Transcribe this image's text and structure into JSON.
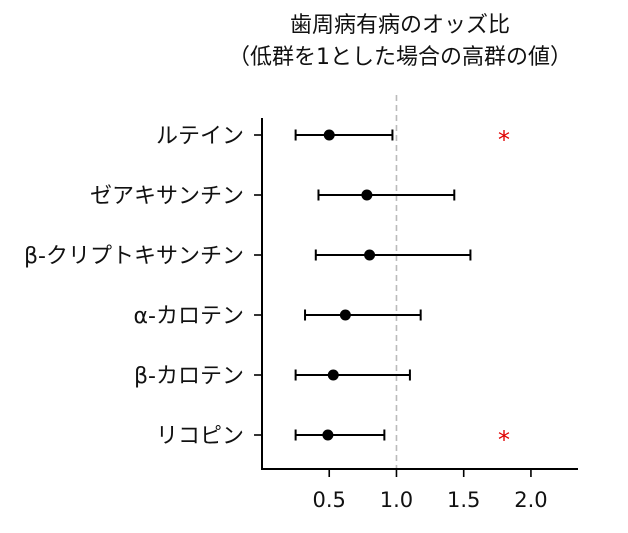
{
  "chart_data": {
    "type": "forest",
    "title": "歯周病有病のオッズ比",
    "subtitle": "（低群を1とした場合の高群の値）",
    "xlabel": "",
    "ylabel": "",
    "xlim": [
      0.0,
      2.35
    ],
    "xticks": [
      "0.5",
      "1.0",
      "1.5",
      "2.0"
    ],
    "xtick_values": [
      0.5,
      1.0,
      1.5,
      2.0
    ],
    "reference_line": 1.0,
    "grid": false,
    "significance_marker": "*",
    "colors": {
      "point": "#000000",
      "reference": "#bbbbbb",
      "significance": "#e00000",
      "axis": "#000000"
    },
    "rows": [
      {
        "label": "ルテイン",
        "or": 0.5,
        "lower": 0.25,
        "upper": 0.97,
        "significant": true
      },
      {
        "label": "ゼアキサンチン",
        "or": 0.78,
        "lower": 0.42,
        "upper": 1.43,
        "significant": false
      },
      {
        "label": "β-クリプトキサンチン",
        "or": 0.8,
        "lower": 0.4,
        "upper": 1.55,
        "significant": false
      },
      {
        "label": "α-カロテン",
        "or": 0.62,
        "lower": 0.32,
        "upper": 1.18,
        "significant": false
      },
      {
        "label": "β-カロテン",
        "or": 0.53,
        "lower": 0.25,
        "upper": 1.1,
        "significant": false
      },
      {
        "label": "リコピン",
        "or": 0.49,
        "lower": 0.25,
        "upper": 0.91,
        "significant": true
      }
    ]
  }
}
